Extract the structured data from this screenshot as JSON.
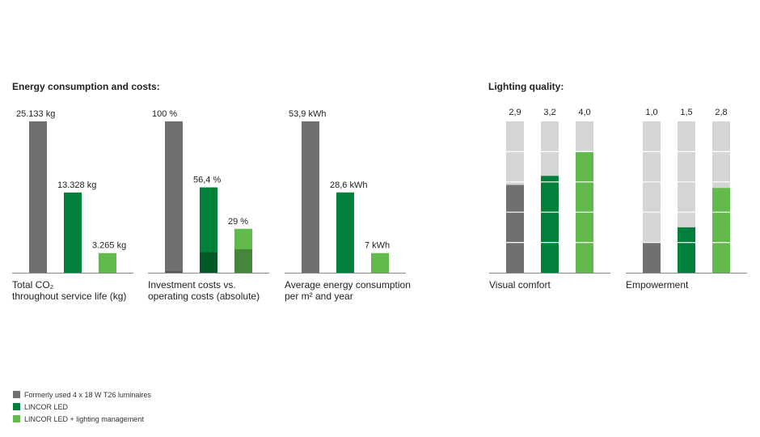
{
  "headings": {
    "energy": "Energy consumption and costs:",
    "quality": "Lighting quality:"
  },
  "colors": {
    "formerly": "#707070",
    "lincor_led": "#00803a",
    "lincor_mgmt": "#62b94c",
    "track": "#d5d5d5",
    "invest_led_dark": "#005a28",
    "invest_mgmt_dark": "#44873a"
  },
  "legend": [
    {
      "label": "Formerly used 4 x 18 W T26 luminaires",
      "color": "#707070"
    },
    {
      "label": "LINCOR LED",
      "color": "#00803a"
    },
    {
      "label": "LINCOR LED + lighting management",
      "color": "#62b94c"
    }
  ],
  "chart_data": [
    {
      "type": "bar",
      "id": "co2",
      "caption": [
        "Total CO₂",
        "throughout service life (kg)"
      ],
      "categories": [
        "Formerly used 4 x 18 W T26 luminaires",
        "LINCOR LED",
        "LINCOR LED + lighting management"
      ],
      "values": [
        25133,
        13328,
        3265
      ],
      "labels": [
        "25.133 kg",
        "13.328 kg",
        "3.265 kg"
      ],
      "ylim": [
        0,
        25133
      ]
    },
    {
      "type": "bar",
      "id": "investment",
      "caption": [
        "Investment costs vs.",
        "operating costs (absolute)"
      ],
      "categories": [
        "Formerly used 4 x 18 W T26 luminaires",
        "LINCOR LED",
        "LINCOR LED + lighting management"
      ],
      "values": [
        100,
        56.4,
        29
      ],
      "investment_values": [
        1,
        13.5,
        15.5
      ],
      "labels": [
        "100 %",
        "56,4 %",
        "29 %"
      ],
      "ylim": [
        0,
        100
      ]
    },
    {
      "type": "bar",
      "id": "energy",
      "caption": [
        "Average energy consumption",
        "per m² and year"
      ],
      "categories": [
        "Formerly used 4 x 18 W T26 luminaires",
        "LINCOR LED",
        "LINCOR LED + lighting management"
      ],
      "values": [
        53.9,
        28.6,
        7
      ],
      "labels": [
        "53,9 kWh",
        "28,6 kWh",
        "7 kWh"
      ],
      "ylim": [
        0,
        53.9
      ]
    },
    {
      "type": "bar",
      "id": "visual",
      "caption": [
        "Visual comfort"
      ],
      "categories": [
        "Formerly used 4 x 18 W T26 luminaires",
        "LINCOR LED",
        "LINCOR LED + lighting management"
      ],
      "values": [
        2.9,
        3.2,
        4.0
      ],
      "labels": [
        "2,9",
        "3,2",
        "4,0"
      ],
      "ylim": [
        0,
        5
      ],
      "segments": 5
    },
    {
      "type": "bar",
      "id": "empowerment",
      "caption": [
        "Empowerment"
      ],
      "categories": [
        "Formerly used 4 x 18 W T26 luminaires",
        "LINCOR LED",
        "LINCOR LED + lighting management"
      ],
      "values": [
        1.0,
        1.5,
        2.8
      ],
      "labels": [
        "1,0",
        "1,5",
        "2,8"
      ],
      "ylim": [
        0,
        5
      ],
      "segments": 5
    }
  ]
}
